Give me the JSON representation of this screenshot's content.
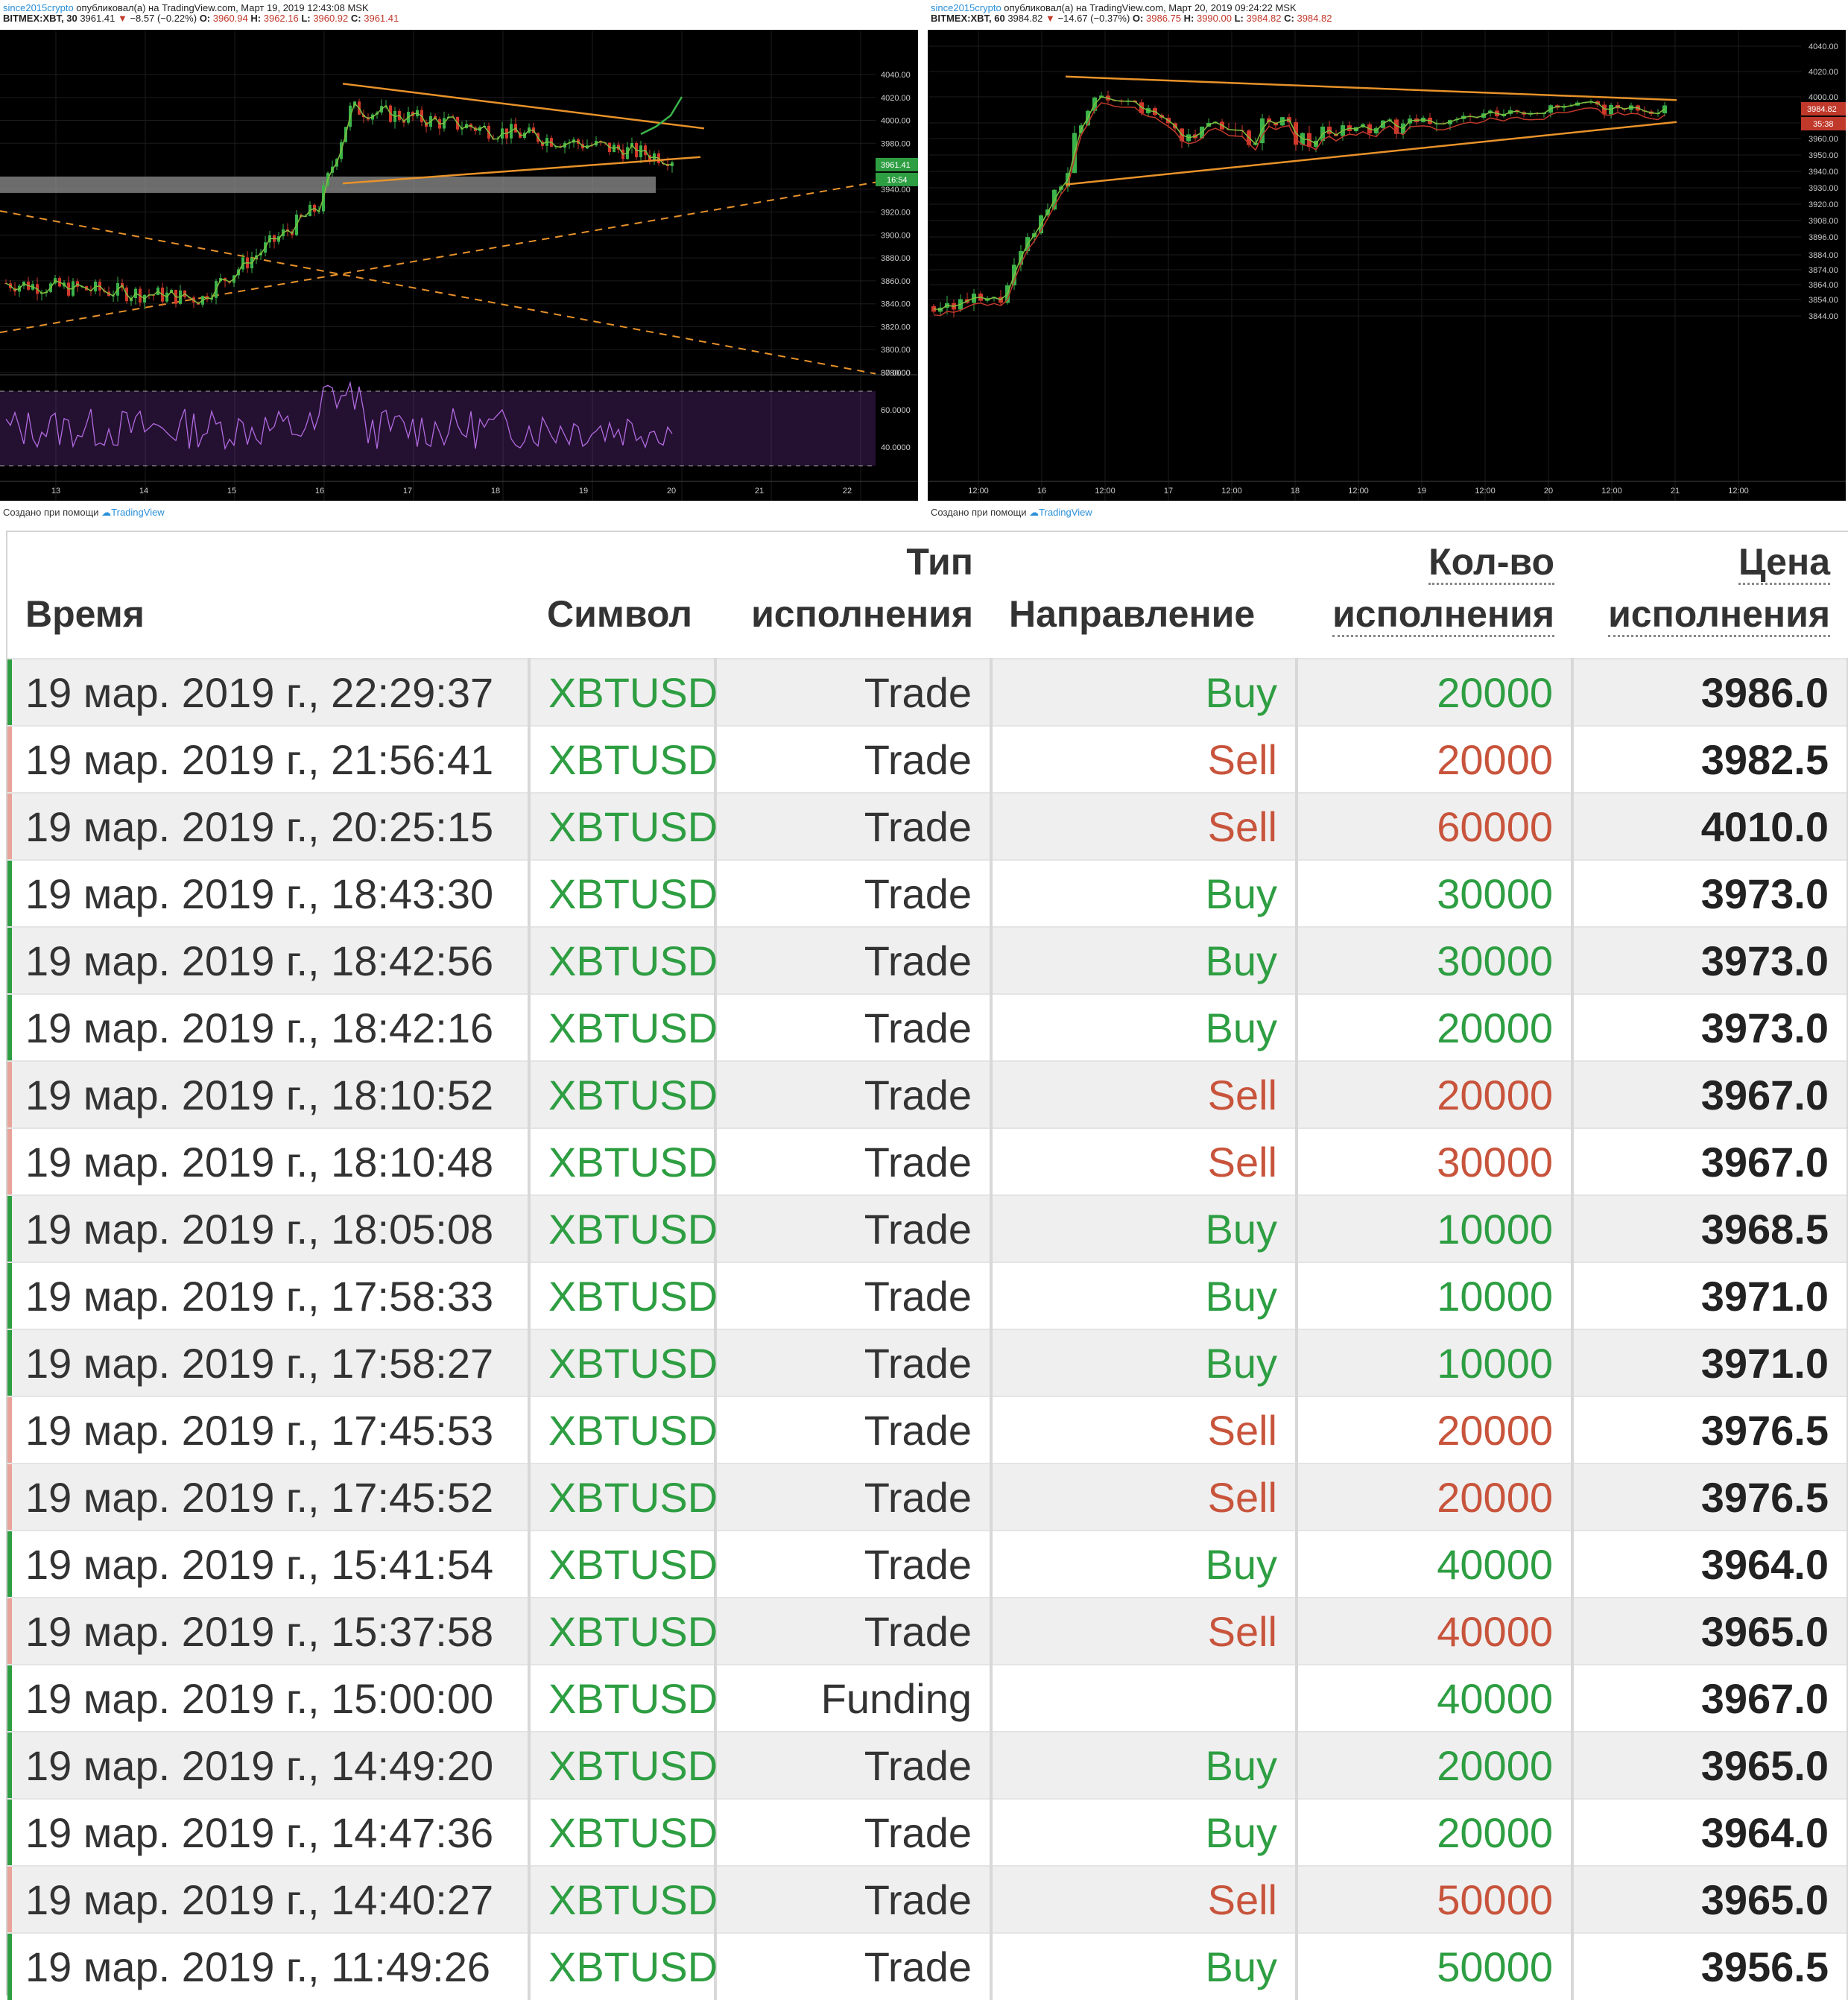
{
  "colors": {
    "buy": "#2e9e42",
    "sell": "#c8543c",
    "trend": "#e8922a",
    "rsi": "#8e3fbf"
  },
  "left_chart": {
    "author": "since2015crypto",
    "published": "опубликовал(а) на TradingView.com, Март 19, 2019 12:43:08 MSK",
    "symbol": "BITMEX:XBT, 30",
    "last": "3961.41",
    "change": "−8.57 (−0.22%)",
    "o_label": "O:",
    "o": "3960.94",
    "h_label": "H:",
    "h": "3962.16",
    "l_label": "L:",
    "l": "3960.92",
    "c_label": "C:",
    "c": "3961.41",
    "price_ticks": [
      "4040.00",
      "4020.00",
      "4000.00",
      "3980.00",
      "3961.41",
      "3940.00",
      "3920.00",
      "3900.00",
      "3880.00",
      "3860.00",
      "3840.00",
      "3820.00",
      "3800.00",
      "3780.00"
    ],
    "price_badge": "3961.41",
    "time_badge": "16:54",
    "rsi_ticks": [
      "80.0000",
      "60.0000",
      "40.0000"
    ],
    "x_ticks": [
      "13",
      "14",
      "15",
      "16",
      "17",
      "18",
      "19",
      "20",
      "21",
      "22"
    ],
    "footer_text": "Создано при помощи",
    "footer_brand": "TradingView"
  },
  "right_chart": {
    "author": "since2015crypto",
    "published": "опубликовал(а) на TradingView.com, Март 20, 2019 09:24:22 MSK",
    "symbol": "BITMEX:XBT, 60",
    "last": "3984.82",
    "change": "−14.67 (−0.37%)",
    "o_label": "O:",
    "o": "3986.75",
    "h_label": "H:",
    "h": "3990.00",
    "l_label": "L:",
    "l": "3984.82",
    "c_label": "C:",
    "c": "3984.82",
    "price_ticks": [
      "4040.00",
      "4020.00",
      "4000.00",
      "3984.82",
      "3970.00",
      "3960.00",
      "3950.00",
      "3940.00",
      "3930.00",
      "3920.00",
      "3908.00",
      "3896.00",
      "3884.00",
      "3874.00",
      "3864.00",
      "3854.00",
      "3844.00"
    ],
    "price_badge": "3984.82",
    "time_badge": "35:38",
    "x_ticks": [
      "12:00",
      "16",
      "12:00",
      "17",
      "12:00",
      "18",
      "12:00",
      "19",
      "12:00",
      "20",
      "12:00",
      "21",
      "12:00"
    ],
    "footer_text": "Создано при помощи",
    "footer_brand": "TradingView"
  },
  "table": {
    "headers": {
      "time": "Время",
      "symbol": "Символ",
      "exec_type_1": "Тип",
      "exec_type_2": "исполнения",
      "direction": "Направление",
      "qty_1": "Кол-во",
      "qty_2": "исполнения",
      "price_1": "Цена",
      "price_2": "исполнения"
    },
    "rows": [
      {
        "time": "19 мар. 2019 г., 22:29:37",
        "symbol": "XBTUSD",
        "type": "Trade",
        "side": "Buy",
        "qty": "20000",
        "price": "3986.0"
      },
      {
        "time": "19 мар. 2019 г., 21:56:41",
        "symbol": "XBTUSD",
        "type": "Trade",
        "side": "Sell",
        "qty": "20000",
        "price": "3982.5"
      },
      {
        "time": "19 мар. 2019 г., 20:25:15",
        "symbol": "XBTUSD",
        "type": "Trade",
        "side": "Sell",
        "qty": "60000",
        "price": "4010.0"
      },
      {
        "time": "19 мар. 2019 г., 18:43:30",
        "symbol": "XBTUSD",
        "type": "Trade",
        "side": "Buy",
        "qty": "30000",
        "price": "3973.0"
      },
      {
        "time": "19 мар. 2019 г., 18:42:56",
        "symbol": "XBTUSD",
        "type": "Trade",
        "side": "Buy",
        "qty": "30000",
        "price": "3973.0"
      },
      {
        "time": "19 мар. 2019 г., 18:42:16",
        "symbol": "XBTUSD",
        "type": "Trade",
        "side": "Buy",
        "qty": "20000",
        "price": "3973.0"
      },
      {
        "time": "19 мар. 2019 г., 18:10:52",
        "symbol": "XBTUSD",
        "type": "Trade",
        "side": "Sell",
        "qty": "20000",
        "price": "3967.0"
      },
      {
        "time": "19 мар. 2019 г., 18:10:48",
        "symbol": "XBTUSD",
        "type": "Trade",
        "side": "Sell",
        "qty": "30000",
        "price": "3967.0"
      },
      {
        "time": "19 мар. 2019 г., 18:05:08",
        "symbol": "XBTUSD",
        "type": "Trade",
        "side": "Buy",
        "qty": "10000",
        "price": "3968.5"
      },
      {
        "time": "19 мар. 2019 г., 17:58:33",
        "symbol": "XBTUSD",
        "type": "Trade",
        "side": "Buy",
        "qty": "10000",
        "price": "3971.0"
      },
      {
        "time": "19 мар. 2019 г., 17:58:27",
        "symbol": "XBTUSD",
        "type": "Trade",
        "side": "Buy",
        "qty": "10000",
        "price": "3971.0"
      },
      {
        "time": "19 мар. 2019 г., 17:45:53",
        "symbol": "XBTUSD",
        "type": "Trade",
        "side": "Sell",
        "qty": "20000",
        "price": "3976.5"
      },
      {
        "time": "19 мар. 2019 г., 17:45:52",
        "symbol": "XBTUSD",
        "type": "Trade",
        "side": "Sell",
        "qty": "20000",
        "price": "3976.5"
      },
      {
        "time": "19 мар. 2019 г., 15:41:54",
        "symbol": "XBTUSD",
        "type": "Trade",
        "side": "Buy",
        "qty": "40000",
        "price": "3964.0"
      },
      {
        "time": "19 мар. 2019 г., 15:37:58",
        "symbol": "XBTUSD",
        "type": "Trade",
        "side": "Sell",
        "qty": "40000",
        "price": "3965.0"
      },
      {
        "time": "19 мар. 2019 г., 15:00:00",
        "symbol": "XBTUSD",
        "type": "Funding",
        "side": "",
        "qty": "40000",
        "price": "3967.0"
      },
      {
        "time": "19 мар. 2019 г., 14:49:20",
        "symbol": "XBTUSD",
        "type": "Trade",
        "side": "Buy",
        "qty": "20000",
        "price": "3965.0"
      },
      {
        "time": "19 мар. 2019 г., 14:47:36",
        "symbol": "XBTUSD",
        "type": "Trade",
        "side": "Buy",
        "qty": "20000",
        "price": "3964.0"
      },
      {
        "time": "19 мар. 2019 г., 14:40:27",
        "symbol": "XBTUSD",
        "type": "Trade",
        "side": "Sell",
        "qty": "50000",
        "price": "3965.0"
      },
      {
        "time": "19 мар. 2019 г., 11:49:26",
        "symbol": "XBTUSD",
        "type": "Trade",
        "side": "Buy",
        "qty": "50000",
        "price": "3956.5"
      }
    ]
  }
}
